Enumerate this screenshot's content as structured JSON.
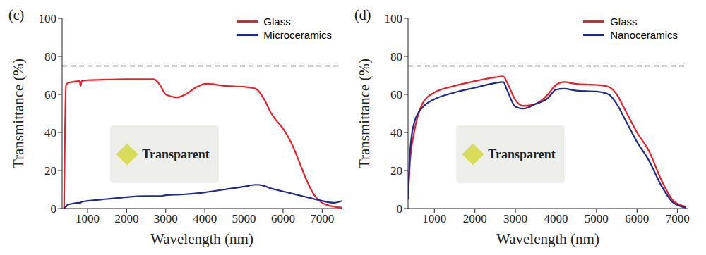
{
  "chart_data": [
    {
      "type": "line",
      "title": "(c)",
      "x_label": "Wavelength (nm)",
      "y_label": "Transmittance (%)",
      "x": [
        400,
        450,
        500,
        600,
        800,
        820,
        850,
        1000,
        1500,
        2000,
        2500,
        2700,
        2850,
        3000,
        3300,
        3500,
        3800,
        4000,
        4100,
        4500,
        5000,
        5300,
        5500,
        5700,
        5800,
        6000,
        6200,
        6500,
        6600,
        6800,
        7000,
        7300,
        7500
      ],
      "series": [
        {
          "name": "Glass",
          "color": "#e8202a",
          "values": [
            0,
            65,
            66,
            66.5,
            67,
            64.5,
            67,
            67.5,
            67.8,
            68,
            68,
            68,
            65,
            60,
            58.5,
            60,
            64,
            65.5,
            65.5,
            64.5,
            64,
            63,
            58,
            50,
            47,
            42,
            35,
            20,
            15,
            7,
            3,
            1,
            0.5
          ]
        },
        {
          "name": "Microceramics",
          "color": "#1f2a8a",
          "values": [
            0,
            1,
            2,
            2.5,
            3,
            3,
            3.5,
            4,
            5,
            6,
            6.5,
            6.5,
            6.5,
            7,
            7.3,
            7.5,
            8,
            8.5,
            8.8,
            10,
            11.5,
            12.5,
            12,
            10.5,
            10,
            9,
            8,
            6.5,
            6,
            5,
            4,
            3,
            4
          ]
        }
      ],
      "xlim": [
        350,
        7500
      ],
      "xticks": [
        1000,
        2000,
        3000,
        4000,
        5000,
        6000,
        7000
      ],
      "ylim": [
        0,
        100
      ],
      "yticks": [
        0,
        20,
        40,
        60,
        80,
        100
      ],
      "reference_line": 75,
      "legend": "upper right",
      "annotations": [
        "Transparent"
      ]
    },
    {
      "type": "line",
      "title": "(d)",
      "x_label": "Wavelength (nm)",
      "y_label": "Transmittance (%)",
      "x": [
        350,
        400,
        500,
        700,
        800,
        1000,
        1500,
        2000,
        2500,
        2700,
        2800,
        3000,
        3200,
        3500,
        3800,
        4000,
        4200,
        4500,
        5000,
        5300,
        5500,
        5700,
        6000,
        6300,
        6600,
        6900,
        7200
      ],
      "series": [
        {
          "name": "Glass",
          "color": "#e8202a",
          "values": [
            5,
            25,
            40,
            55,
            58,
            61,
            64.5,
            67,
            69,
            69.5,
            66,
            57,
            54,
            55,
            60,
            65,
            66.5,
            65.5,
            65,
            64,
            60,
            52,
            40,
            30,
            15,
            4,
            1
          ]
        },
        {
          "name": "Nanoceramics",
          "color": "#1f2a8a",
          "values": [
            5,
            30,
            45,
            53,
            55,
            57.5,
            61,
            63.5,
            66,
            66.5,
            62,
            53.5,
            52.5,
            55,
            58,
            62.5,
            63,
            62,
            61.5,
            60,
            55,
            47,
            35,
            25,
            12,
            3,
            0.5
          ]
        }
      ],
      "xlim": [
        350,
        7250
      ],
      "xticks": [
        1000,
        2000,
        3000,
        4000,
        5000,
        6000,
        7000
      ],
      "ylim": [
        0,
        100
      ],
      "yticks": [
        0,
        20,
        40,
        60,
        80,
        100
      ],
      "reference_line": 75,
      "legend": "upper right",
      "annotations": [
        "Transparent"
      ]
    }
  ]
}
